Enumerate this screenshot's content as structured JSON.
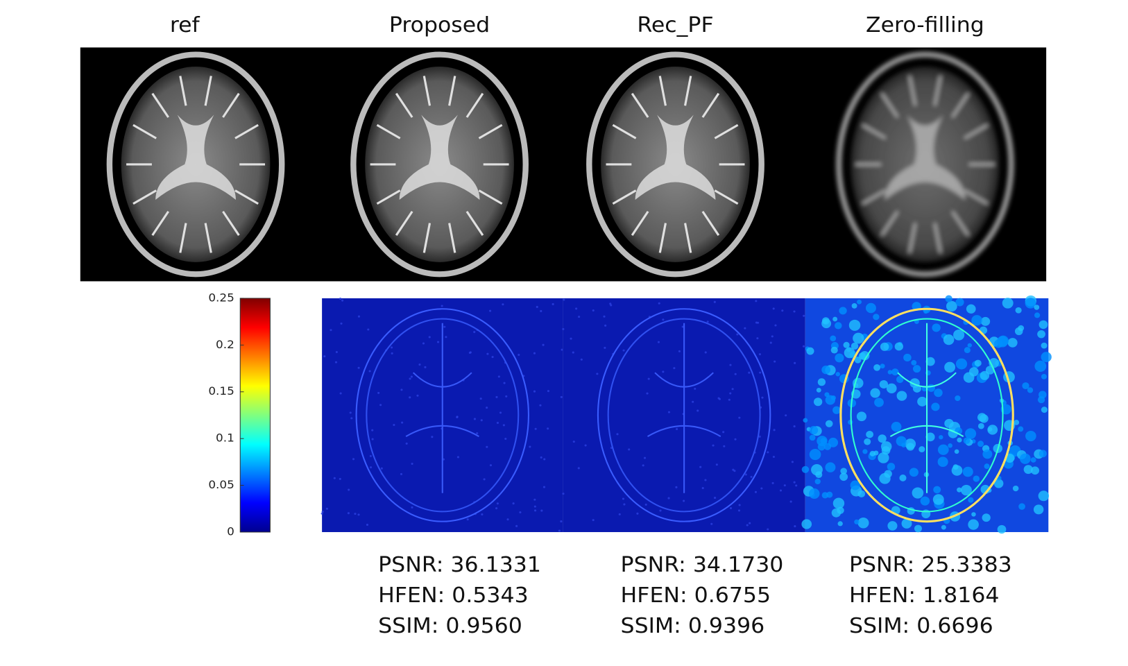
{
  "columns": [
    {
      "title": "ref"
    },
    {
      "title": "Proposed",
      "metrics": [
        "PSNR: 36.1331",
        "HFEN: 0.5343",
        "SSIM: 0.9560"
      ]
    },
    {
      "title": "Rec_PF",
      "metrics": [
        "PSNR: 34.1730",
        "HFEN: 0.6755",
        "SSIM: 0.9396"
      ]
    },
    {
      "title": "Zero-filling",
      "metrics": [
        "PSNR: 25.3383",
        "HFEN: 1.8164",
        "SSIM: 0.6696"
      ]
    }
  ],
  "colorbar": {
    "lim": [
      0,
      0.25
    ],
    "ticks": [
      0,
      0.05,
      0.1,
      0.15,
      0.2,
      0.25
    ]
  }
}
